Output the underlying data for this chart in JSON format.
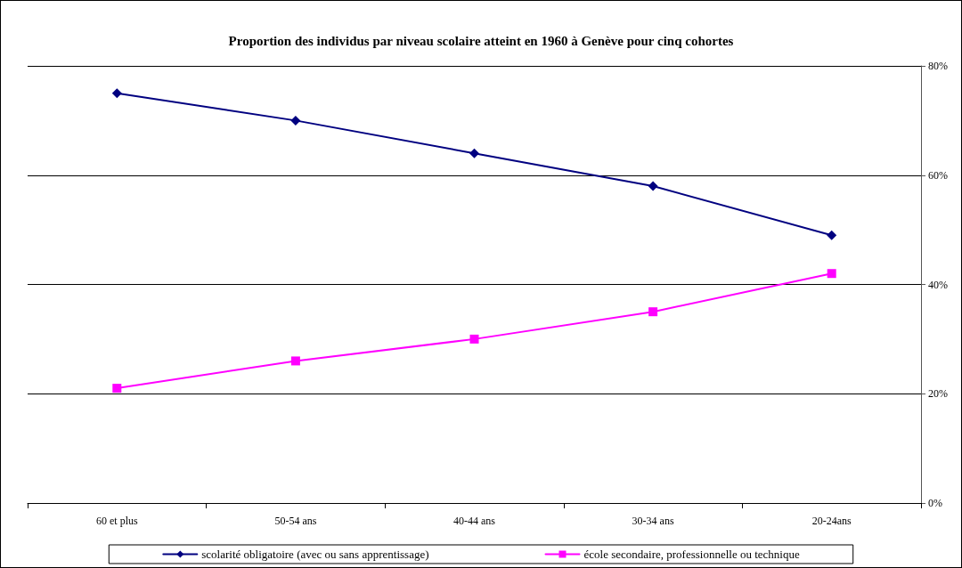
{
  "chart_data": {
    "type": "line",
    "title": "Proportion des individus par niveau scolaire atteint en 1960 à Genève pour cinq cohortes",
    "categories": [
      "60 et plus",
      "50-54 ans",
      "40-44 ans",
      "30-34 ans",
      "20-24ans"
    ],
    "series": [
      {
        "name": "scolarité obligatoire (avec ou sans apprentissage)",
        "color": "#000080",
        "marker": "diamond",
        "values": [
          75,
          70,
          64,
          58,
          49
        ]
      },
      {
        "name": "école secondaire, professionnelle ou technique",
        "color": "#ff00ff",
        "marker": "square",
        "values": [
          21,
          26,
          30,
          35,
          42
        ]
      }
    ],
    "ylim": [
      0,
      80
    ],
    "yticks": [
      {
        "value": 0,
        "label": "0%"
      },
      {
        "value": 20,
        "label": "20%"
      },
      {
        "value": 40,
        "label": "40%"
      },
      {
        "value": 60,
        "label": "60%"
      },
      {
        "value": 80,
        "label": "80%"
      }
    ],
    "grid": "y",
    "legend": "bottom",
    "line_style": "solid"
  }
}
